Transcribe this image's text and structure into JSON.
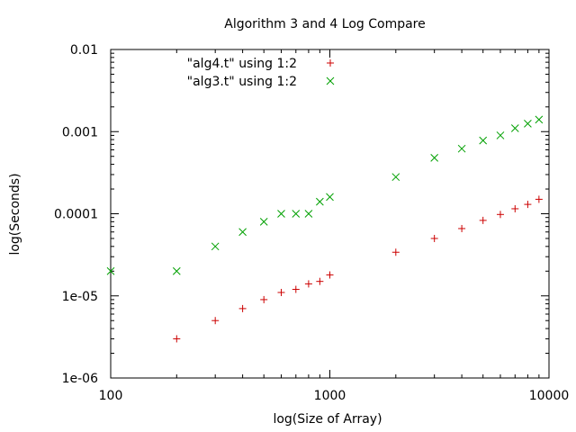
{
  "chart_data": {
    "type": "scatter",
    "title": "Algorithm 3 and 4 Log Compare",
    "xlabel": "log(Size of Array)",
    "ylabel": "log(Seconds)",
    "xscale": "log",
    "yscale": "log",
    "xlim": [
      100,
      10000
    ],
    "ylim": [
      1e-06,
      0.01
    ],
    "grid": false,
    "legend_position": "top-left",
    "x_tick_labels": [
      "100",
      "1000",
      "10000"
    ],
    "x_tick_values": [
      100,
      1000,
      10000
    ],
    "y_tick_labels": [
      "0.01",
      "0.001",
      "0.0001",
      "1e-05",
      "1e-06"
    ],
    "y_tick_values": [
      0.01,
      0.001,
      0.0001,
      1e-05,
      1e-06
    ],
    "series": [
      {
        "name": "\"alg4.t\" using 1:2",
        "marker": "+",
        "color": "#cc0000",
        "x": [
          200,
          300,
          400,
          500,
          600,
          700,
          800,
          900,
          1000,
          2000,
          3000,
          4000,
          5000,
          6000,
          7000,
          8000,
          9000
        ],
        "y": [
          3e-06,
          5e-06,
          7e-06,
          9e-06,
          1.1e-05,
          1.2e-05,
          1.4e-05,
          1.5e-05,
          1.8e-05,
          3.4e-05,
          5e-05,
          6.6e-05,
          8.3e-05,
          9.8e-05,
          0.000115,
          0.00013,
          0.00015
        ]
      },
      {
        "name": "\"alg3.t\" using 1:2",
        "marker": "x",
        "color": "#00a000",
        "x": [
          100,
          200,
          300,
          400,
          500,
          600,
          700,
          800,
          900,
          1000,
          2000,
          3000,
          4000,
          5000,
          6000,
          7000,
          8000,
          9000
        ],
        "y": [
          2e-05,
          2e-05,
          4e-05,
          6e-05,
          8e-05,
          0.0001,
          0.0001,
          0.0001,
          0.00014,
          0.00016,
          0.00028,
          0.00048,
          0.00062,
          0.00078,
          0.0009,
          0.0011,
          0.00125,
          0.0014
        ]
      }
    ]
  }
}
